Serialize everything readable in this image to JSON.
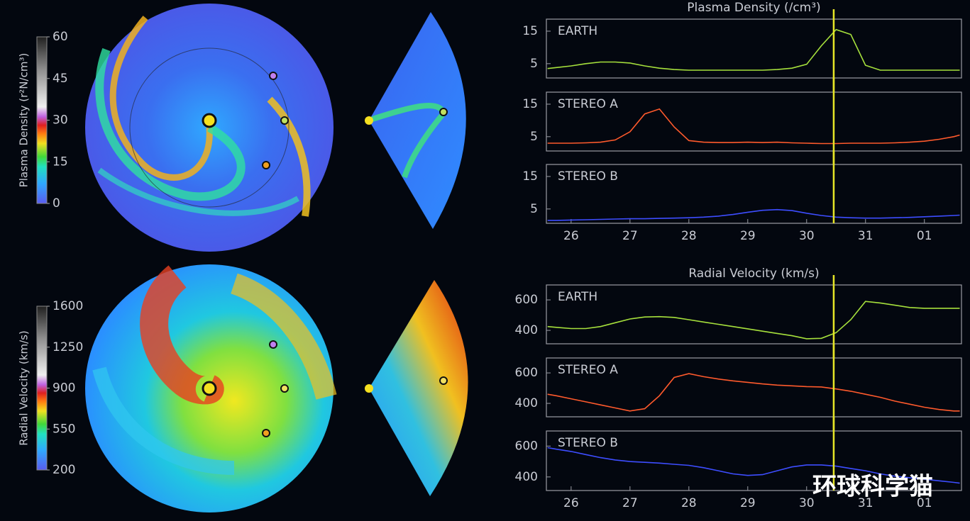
{
  "chart_data": [
    {
      "type": "colorbar",
      "label": "Plasma Density (r²N/cm³)",
      "ylim": [
        0,
        60
      ],
      "yticks": [
        0,
        15,
        30,
        45,
        60
      ]
    },
    {
      "type": "colorbar",
      "label": "Radial Velocity (km/s)",
      "ylim": [
        200,
        1600
      ],
      "yticks": [
        200,
        550,
        900,
        1250,
        1600
      ]
    },
    {
      "type": "line",
      "title": "Plasma Density (/cm³)",
      "xlim": [
        25.58,
        32.63
      ],
      "ylim": [
        0.6,
        18.7
      ],
      "yticks": [
        5,
        15
      ],
      "cursor_x": 30.46,
      "cursor_color": "#e6e627",
      "x": [
        25.6,
        25.75,
        26,
        26.25,
        26.5,
        26.75,
        27,
        27.25,
        27.5,
        27.75,
        28,
        28.25,
        28.5,
        28.75,
        29,
        29.25,
        29.5,
        29.75,
        30,
        30.25,
        30.5,
        30.75,
        31,
        31.25,
        31.5,
        31.75,
        32,
        32.25,
        32.5,
        32.6
      ],
      "series": [
        {
          "name": "EARTH",
          "color": "#a6e03c",
          "values": [
            3.5,
            3.8,
            4.3,
            5,
            5.5,
            5.5,
            5.2,
            4.3,
            3.6,
            3.2,
            3,
            3,
            3,
            3,
            3,
            3,
            3.2,
            3.6,
            4.8,
            10.5,
            15.5,
            14,
            4.5,
            3,
            3,
            3,
            3,
            3,
            3,
            3
          ]
        }
      ]
    },
    {
      "type": "line",
      "xlim": [
        25.58,
        32.63
      ],
      "ylim": [
        0.6,
        18.7
      ],
      "yticks": [
        5,
        15
      ],
      "cursor_x": 30.46,
      "cursor_color": "#e6e627",
      "x": [
        25.6,
        25.75,
        26,
        26.25,
        26.5,
        26.75,
        27,
        27.25,
        27.5,
        27.75,
        28,
        28.25,
        28.5,
        28.75,
        29,
        29.25,
        29.5,
        29.75,
        30,
        30.25,
        30.5,
        30.75,
        31,
        31.25,
        31.5,
        31.75,
        32,
        32.25,
        32.5,
        32.6
      ],
      "series": [
        {
          "name": "STEREO A",
          "color": "#ff5a2c",
          "values": [
            3,
            3,
            3,
            3.1,
            3.3,
            4,
            6.5,
            12,
            13.5,
            8,
            3.8,
            3.3,
            3.2,
            3.2,
            3.3,
            3.2,
            3.3,
            3.1,
            3,
            2.9,
            2.9,
            3,
            3,
            3,
            3.1,
            3.3,
            3.6,
            4.2,
            5,
            5.5
          ]
        }
      ]
    },
    {
      "type": "line",
      "xlim": [
        25.58,
        32.63
      ],
      "ylim": [
        0.6,
        18.7
      ],
      "yticks": [
        5,
        15
      ],
      "cursor_x": 30.46,
      "cursor_color": "#e6e627",
      "xticks": [
        26,
        27,
        28,
        29,
        30,
        31,
        {
          "value": 32,
          "label": "01"
        }
      ],
      "x": [
        25.6,
        25.75,
        26,
        26.25,
        26.5,
        26.75,
        27,
        27.25,
        27.5,
        27.75,
        28,
        28.25,
        28.5,
        28.75,
        29,
        29.25,
        29.5,
        29.75,
        30,
        30.25,
        30.5,
        30.75,
        31,
        31.25,
        31.5,
        31.75,
        32,
        32.25,
        32.5,
        32.6
      ],
      "series": [
        {
          "name": "STEREO B",
          "color": "#3d4dff",
          "values": [
            1.5,
            1.5,
            1.6,
            1.7,
            1.8,
            1.9,
            2,
            2,
            2.1,
            2.2,
            2.3,
            2.5,
            2.8,
            3.3,
            4,
            4.6,
            4.8,
            4.5,
            3.7,
            3,
            2.5,
            2.3,
            2.2,
            2.2,
            2.3,
            2.4,
            2.6,
            2.8,
            3,
            3.1
          ]
        }
      ]
    },
    {
      "type": "line",
      "title": "Radial Velocity (km/s)",
      "xlim": [
        25.58,
        32.63
      ],
      "ylim": [
        312,
        698
      ],
      "yticks": [
        400,
        600
      ],
      "cursor_x": 30.46,
      "cursor_color": "#e6e627",
      "x": [
        25.6,
        25.75,
        26,
        26.25,
        26.5,
        26.75,
        27,
        27.25,
        27.5,
        27.75,
        28,
        28.25,
        28.5,
        28.75,
        29,
        29.25,
        29.5,
        29.75,
        30,
        30.25,
        30.5,
        30.75,
        31,
        31.25,
        31.5,
        31.75,
        32,
        32.25,
        32.5,
        32.6
      ],
      "series": [
        {
          "name": "EARTH",
          "color": "#a6e03c",
          "values": [
            425,
            420,
            412,
            412,
            425,
            450,
            475,
            488,
            490,
            485,
            470,
            455,
            440,
            425,
            410,
            395,
            380,
            365,
            345,
            348,
            385,
            470,
            590,
            580,
            565,
            550,
            545,
            545,
            545,
            545
          ]
        }
      ]
    },
    {
      "type": "line",
      "xlim": [
        25.58,
        32.63
      ],
      "ylim": [
        312,
        698
      ],
      "yticks": [
        400,
        600
      ],
      "cursor_x": 30.46,
      "cursor_color": "#e6e627",
      "x": [
        25.6,
        25.75,
        26,
        26.25,
        26.5,
        26.75,
        27,
        27.25,
        27.5,
        27.75,
        28,
        28.25,
        28.5,
        28.75,
        29,
        29.25,
        29.5,
        29.75,
        30,
        30.25,
        30.5,
        30.75,
        31,
        31.25,
        31.5,
        31.75,
        32,
        32.25,
        32.5,
        32.6
      ],
      "series": [
        {
          "name": "STEREO A",
          "color": "#ff5a2c",
          "values": [
            460,
            450,
            430,
            410,
            390,
            370,
            350,
            365,
            450,
            570,
            595,
            575,
            560,
            548,
            538,
            528,
            520,
            515,
            510,
            508,
            495,
            480,
            460,
            440,
            415,
            395,
            375,
            360,
            350,
            350
          ]
        }
      ]
    },
    {
      "type": "line",
      "xlim": [
        25.58,
        32.63
      ],
      "ylim": [
        312,
        698
      ],
      "yticks": [
        400,
        600
      ],
      "cursor_x": 30.46,
      "cursor_color": "#e6e627",
      "xticks": [
        26,
        27,
        28,
        29,
        30,
        31,
        {
          "value": 32,
          "label": "01"
        }
      ],
      "x": [
        25.6,
        25.75,
        26,
        26.25,
        26.5,
        26.75,
        27,
        27.25,
        27.5,
        27.75,
        28,
        28.25,
        28.5,
        28.75,
        29,
        29.25,
        29.5,
        29.75,
        30,
        30.25,
        30.5,
        30.75,
        31,
        31.25,
        31.5,
        31.75,
        32,
        32.25,
        32.5,
        32.6
      ],
      "series": [
        {
          "name": "STEREO B",
          "color": "#3d4dff",
          "values": [
            590,
            580,
            565,
            545,
            525,
            510,
            500,
            495,
            490,
            482,
            475,
            460,
            440,
            420,
            410,
            415,
            440,
            465,
            478,
            478,
            470,
            455,
            440,
            420,
            405,
            395,
            385,
            375,
            365,
            360
          ]
        }
      ]
    }
  ],
  "watermark": "环球科学猫"
}
